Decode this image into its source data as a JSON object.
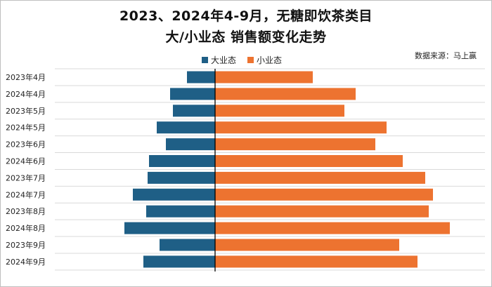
{
  "title_line1": "2023、2024年4-9月，无糖即饮茶类目",
  "title_line2": "大/小业态 销售额变化走势",
  "source": "数据来源：马上赢",
  "colors": {
    "large": "#1f5f86",
    "small": "#ed7330",
    "axis": "#000000",
    "grid": "#d9d9d9"
  },
  "chart_data": {
    "type": "bar",
    "orientation": "horizontal-diverging",
    "categories": [
      "2023年4月",
      "2024年4月",
      "2023年5月",
      "2024年5月",
      "2023年6月",
      "2024年6月",
      "2023年7月",
      "2024年7月",
      "2023年8月",
      "2024年8月",
      "2023年9月",
      "2024年9月"
    ],
    "series": [
      {
        "name": "大业态",
        "direction": "left",
        "values": [
          40,
          64,
          60,
          83,
          70,
          94,
          96,
          117,
          98,
          129,
          79,
          102
        ]
      },
      {
        "name": "小业态",
        "direction": "right",
        "values": [
          139,
          200,
          184,
          244,
          228,
          267,
          299,
          310,
          304,
          334,
          262,
          288
        ]
      }
    ],
    "grid": true,
    "legend": "top"
  }
}
